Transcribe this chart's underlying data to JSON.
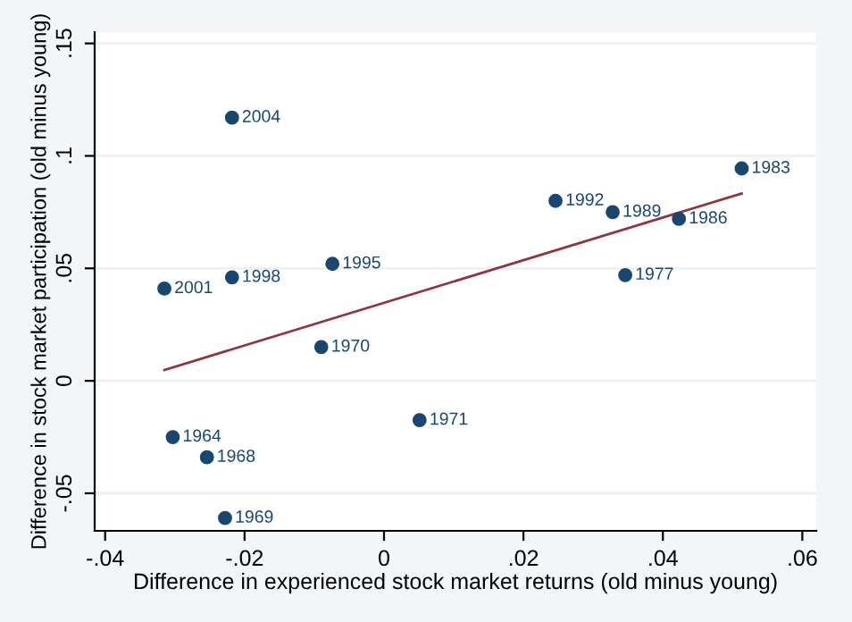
{
  "chart_data": {
    "type": "scatter",
    "xlabel": "Difference in experienced stock market returns (old minus young)",
    "ylabel": "Difference in stock market participation (old minus young)",
    "xlim": [
      -0.0415,
      0.062
    ],
    "ylim": [
      -0.0667,
      0.155
    ],
    "xticks": [
      {
        "value": -0.04,
        "label": "-.04"
      },
      {
        "value": -0.02,
        "label": "-.02"
      },
      0,
      {
        "value": 0.02,
        "label": ".02"
      },
      {
        "value": 0.04,
        "label": ".04"
      },
      {
        "value": 0.06,
        "label": ".06"
      }
    ],
    "yticks": [
      {
        "value": -0.05,
        "label": "-.05"
      },
      0,
      {
        "value": 0.05,
        "label": ".05"
      },
      {
        "value": 0.1,
        "label": ".1"
      },
      {
        "value": 0.15,
        "label": ".15"
      }
    ],
    "grid": "y",
    "marker": "circle",
    "legend": false,
    "series": [
      {
        "color": "#1a476f",
        "x": [
          -0.0218,
          0.0513,
          0.0246,
          0.0328,
          0.0423,
          0.0346,
          -0.0074,
          -0.0218,
          -0.0315,
          -0.009,
          0.0051,
          -0.0303,
          -0.0254,
          -0.0228
        ],
        "values": [
          0.117,
          0.0944,
          0.08,
          0.075,
          0.072,
          0.047,
          0.052,
          0.046,
          0.041,
          0.015,
          -0.0175,
          -0.025,
          -0.034,
          -0.061
        ]
      },
      {
        "type": "line",
        "marker": "none",
        "color": "#90353b",
        "x": [
          -0.0315,
          0.0513
        ],
        "values": [
          0.0048,
          0.0833
        ]
      }
    ],
    "annotations": [
      {
        "text": "2004",
        "x": -0.0218,
        "y": 0.117
      },
      {
        "text": "1983",
        "x": 0.0513,
        "y": 0.0944
      },
      {
        "text": "1992",
        "x": 0.0246,
        "y": 0.08
      },
      {
        "text": "1989",
        "x": 0.0328,
        "y": 0.075
      },
      {
        "text": "1986",
        "x": 0.0423,
        "y": 0.072
      },
      {
        "text": "1977",
        "x": 0.0346,
        "y": 0.047
      },
      {
        "text": "1995",
        "x": -0.0074,
        "y": 0.052
      },
      {
        "text": "1998",
        "x": -0.0218,
        "y": 0.046
      },
      {
        "text": "2001",
        "x": -0.0315,
        "y": 0.041
      },
      {
        "text": "1970",
        "x": -0.009,
        "y": 0.015
      },
      {
        "text": "1971",
        "x": 0.0051,
        "y": -0.0175
      },
      {
        "text": "1964",
        "x": -0.0303,
        "y": -0.025
      },
      {
        "text": "1968",
        "x": -0.0254,
        "y": -0.034
      },
      {
        "text": "1969",
        "x": -0.0228,
        "y": -0.061
      }
    ]
  }
}
